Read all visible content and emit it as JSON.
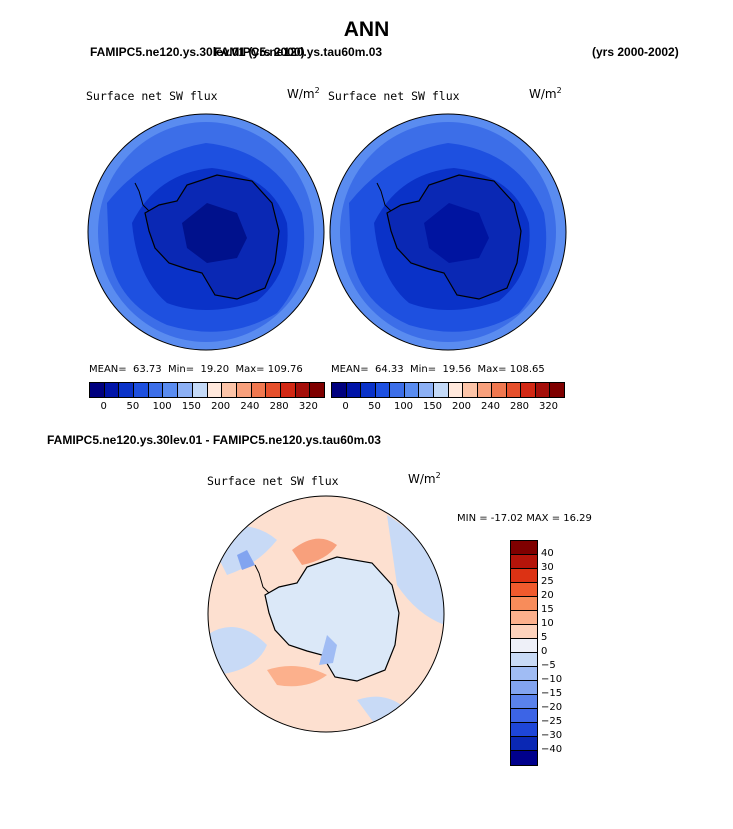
{
  "page": {
    "title": "ANN",
    "case1": "FAMIPC5.ne120.ys.30lev.01 (yrs 2000)",
    "case2": "FAMIPC5.ne120.ys.tau60m.03",
    "years": "(yrs 2000-2002)",
    "diff_title": "FAMIPC5.ne120.ys.30lev.01 - FAMIPC5.ne120.ys.tau60m.03"
  },
  "panel_left": {
    "variable": "Surface net SW flux",
    "units": "W/m",
    "units_sup": "2",
    "mean_label": "MEAN=",
    "mean": "63.73",
    "min_label": "Min=",
    "min": "19.20",
    "max_label": "Max=",
    "max": "109.76"
  },
  "panel_right": {
    "variable": "Surface net SW flux",
    "units": "W/m",
    "units_sup": "2",
    "mean_label": "MEAN=",
    "mean": "64.33",
    "min_label": "Min=",
    "min": "19.56",
    "max_label": "Max=",
    "max": "108.65"
  },
  "panel_diff": {
    "variable": "Surface net SW flux",
    "units": "W/m",
    "units_sup": "2",
    "minmax": "MIN = -17.02 MAX =  16.29"
  },
  "colorbar_abs": {
    "colors": [
      "#00007f",
      "#0014a8",
      "#0a32c8",
      "#1e50e0",
      "#3c6ee8",
      "#5a8cf0",
      "#8cb0f5",
      "#c4daf8",
      "#ffe8dc",
      "#fcc4a8",
      "#f8a07c",
      "#f07850",
      "#e6502c",
      "#d22814",
      "#a50f0a",
      "#7f0000"
    ],
    "labels": [
      "0",
      "50",
      "100",
      "150",
      "200",
      "240",
      "280",
      "320"
    ]
  },
  "colorbar_diff": {
    "colors": [
      "#7f0000",
      "#b4140a",
      "#dc3214",
      "#f05a2d",
      "#f88c5a",
      "#fcb08c",
      "#fdd2bc",
      "#eef0f8",
      "#c8daf6",
      "#a0bcf4",
      "#82a4f0",
      "#5a82ec",
      "#3c64e6",
      "#1e46d8",
      "#0a28b4",
      "#00008c"
    ],
    "labels": [
      "40",
      "30",
      "25",
      "20",
      "15",
      "10",
      "5",
      "0",
      "-5",
      "-10",
      "-15",
      "-20",
      "-25",
      "-30",
      "-40"
    ]
  },
  "legend_colors": {
    "land": "#ddeaf7",
    "ocean_low": "#3c64e6"
  }
}
